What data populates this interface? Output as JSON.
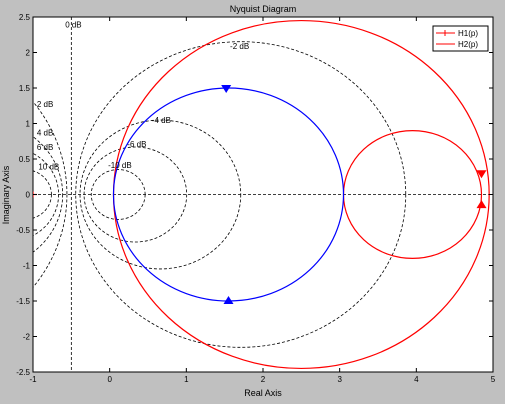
{
  "chart_data": {
    "type": "line",
    "title": "Nyquist Diagram",
    "xlabel": "Real Axis",
    "ylabel": "Imaginary Axis",
    "xlim": [
      -1,
      5
    ],
    "ylim": [
      -2.5,
      2.5
    ],
    "x_ticks": [
      -1,
      0,
      1,
      2,
      3,
      4,
      5
    ],
    "y_ticks": [
      -2.5,
      -2,
      -1.5,
      -1,
      -0.5,
      0,
      0.5,
      1,
      1.5,
      2,
      2.5
    ],
    "x_tick_labels": [
      "-1",
      "0",
      "1",
      "2",
      "3",
      "4",
      "5"
    ],
    "y_tick_labels": [
      "-2.5",
      "-2",
      "-1.5",
      "-1",
      "-0.5",
      "0",
      "0.5",
      "1",
      "1.5",
      "2",
      "2.5"
    ],
    "legend_position": "top-right",
    "series": [
      {
        "name": "H1(p)",
        "color": "#ff0000",
        "shape": "circle",
        "circles": [
          {
            "center": [
              2.5,
              0
            ],
            "radius": 2.45
          },
          {
            "center": [
              3.95,
              0
            ],
            "radius": 0.9
          }
        ],
        "arrows_at": [
          [
            4.85,
            0.3
          ],
          [
            4.85,
            -0.15
          ]
        ]
      },
      {
        "name": "H2(p)",
        "color": "#0000ff",
        "shape": "circle",
        "circles": [
          {
            "center": [
              1.55,
              0
            ],
            "radius": 1.5
          }
        ],
        "arrows_at": [
          [
            1.52,
            1.5
          ],
          [
            1.55,
            -1.5
          ]
        ]
      }
    ],
    "grid": {
      "type": "m-circles",
      "color": "#000000",
      "style": "dashed",
      "labels": [
        {
          "text": "0 dB",
          "x": -0.58,
          "y": 2.35
        },
        {
          "text": "-2 dB",
          "x": 1.57,
          "y": 2.05
        },
        {
          "text": "2 dB",
          "x": -0.95,
          "y": 1.23
        },
        {
          "text": "4 dB",
          "x": -0.95,
          "y": 0.83
        },
        {
          "text": "6 dB",
          "x": -0.95,
          "y": 0.63
        },
        {
          "text": "10 dB",
          "x": -0.93,
          "y": 0.35
        },
        {
          "text": "-4 dB",
          "x": 0.55,
          "y": 1.01
        },
        {
          "text": "-6 dB",
          "x": 0.23,
          "y": 0.67
        },
        {
          "text": "-10 dB",
          "x": -0.02,
          "y": 0.37
        }
      ]
    }
  }
}
